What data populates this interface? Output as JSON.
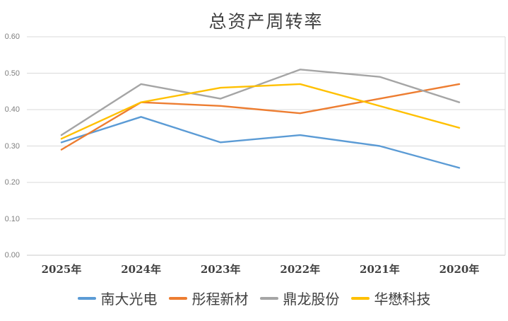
{
  "title": "总资产周转率",
  "chart_data": {
    "type": "line",
    "title": "总资产周转率",
    "categories": [
      "2025年",
      "2024年",
      "2023年",
      "2022年",
      "2021年",
      "2020年"
    ],
    "series": [
      {
        "name": "南大光电",
        "color": "#5B9BD5",
        "values": [
          0.31,
          0.38,
          0.31,
          0.33,
          0.3,
          0.24
        ]
      },
      {
        "name": "彤程新材",
        "color": "#ED7D31",
        "values": [
          0.29,
          0.42,
          0.41,
          0.39,
          0.43,
          0.47
        ]
      },
      {
        "name": "鼎龙股份",
        "color": "#A5A5A5",
        "values": [
          0.33,
          0.47,
          0.43,
          0.51,
          0.49,
          0.42
        ]
      },
      {
        "name": "华懋科技",
        "color": "#FFC000",
        "values": [
          0.32,
          0.42,
          0.46,
          0.47,
          0.41,
          0.35
        ]
      }
    ],
    "xlabel": "",
    "ylabel": "",
    "ylim": [
      0,
      0.6
    ],
    "y_ticks": [
      "0.00",
      "0.10",
      "0.20",
      "0.30",
      "0.40",
      "0.50",
      "0.60"
    ],
    "grid": true,
    "legend_position": "bottom"
  },
  "colors": {
    "gridline": "#D9D9D9",
    "axis_line": "#C9C9C9",
    "right_border": "#D9D9D9",
    "tick_label": "#7F7F7F",
    "category_label": "#404040",
    "title": "#404040"
  }
}
